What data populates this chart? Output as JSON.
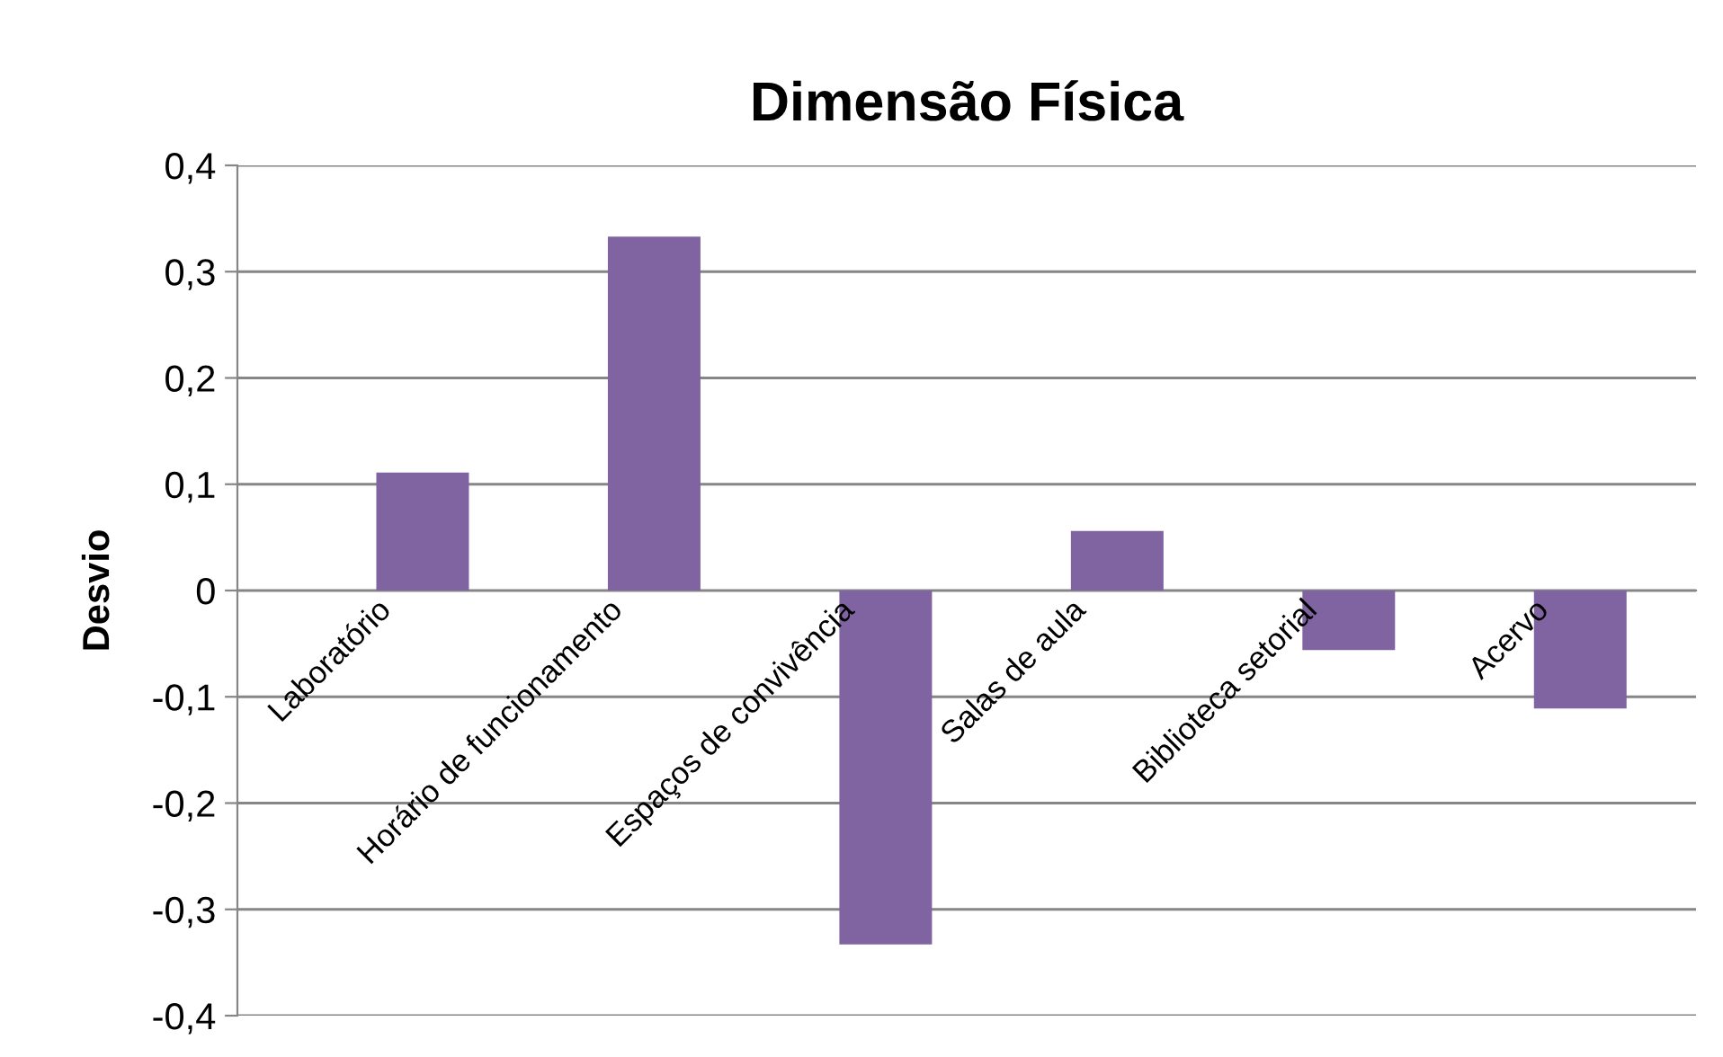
{
  "chart_data": {
    "type": "bar",
    "title": "Dimensão Física",
    "ylabel": "Desvio",
    "categories": [
      "Laboratório",
      "Horário de funcionamento",
      "Espaços de convivência",
      "Salas de aula",
      "Biblioteca setorial",
      "Acervo"
    ],
    "values": [
      0.111,
      0.333,
      -0.333,
      0.056,
      -0.056,
      -0.111
    ],
    "color": "#8064a2",
    "ylim": [
      -0.4,
      0.4
    ],
    "yticks": [
      {
        "value": -0.4,
        "label": "-0,4"
      },
      {
        "value": -0.3,
        "label": "-0,3"
      },
      {
        "value": -0.2,
        "label": "-0,2"
      },
      {
        "value": -0.1,
        "label": "-0,1"
      },
      0,
      {
        "value": 0.1,
        "label": "0,1"
      },
      {
        "value": 0.2,
        "label": "0,2"
      },
      {
        "value": 0.3,
        "label": "0,3"
      },
      {
        "value": 0.4,
        "label": "0,4"
      }
    ],
    "grid": "y",
    "legend": false
  }
}
